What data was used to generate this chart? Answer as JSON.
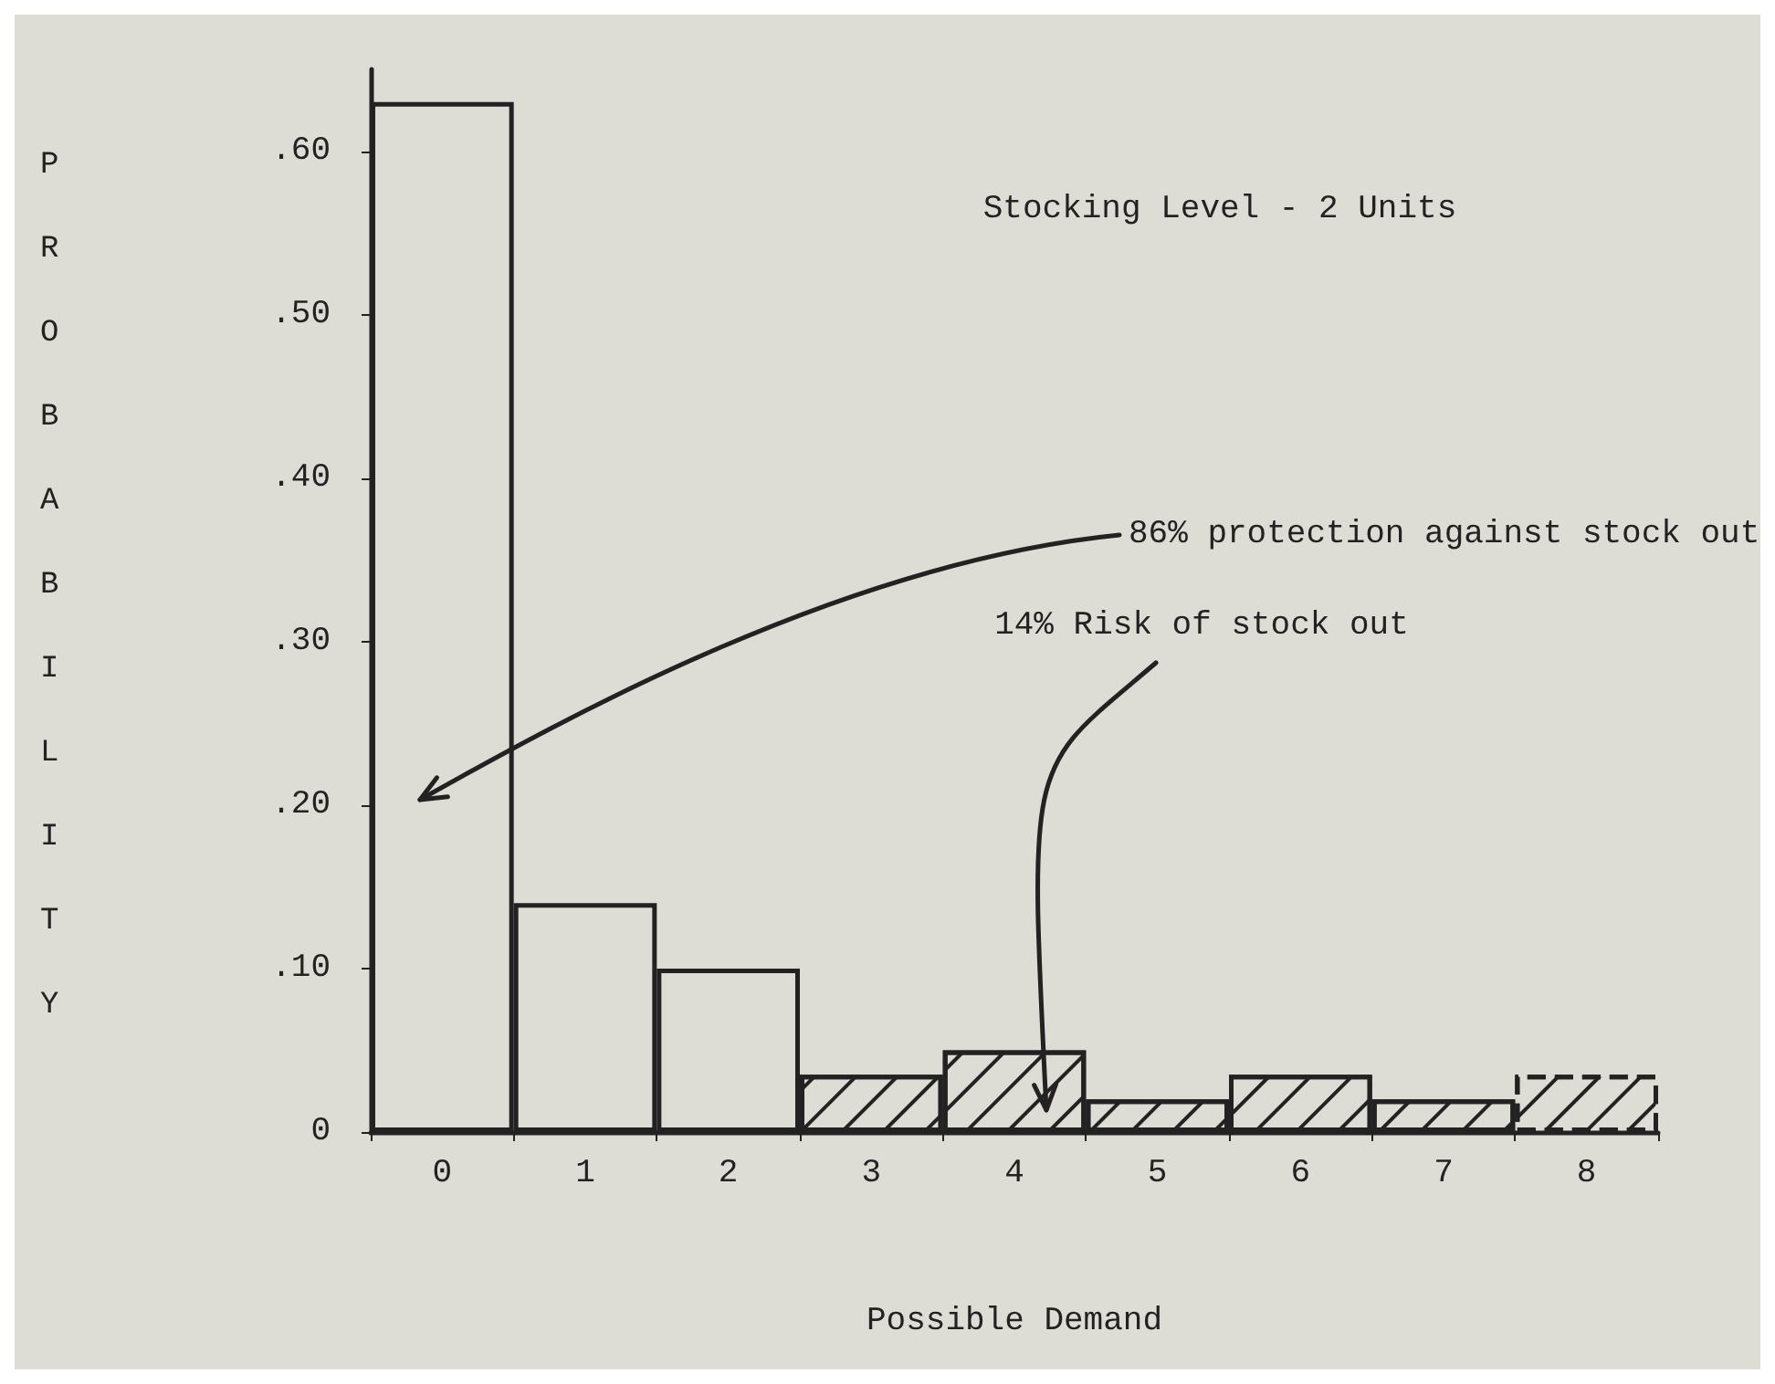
{
  "chart_data": {
    "type": "bar",
    "ylabel": "PROBABILITY",
    "xlabel": "Possible Demand",
    "categories": [
      "0",
      "1",
      "2",
      "3",
      "4",
      "5",
      "6",
      "7",
      "8"
    ],
    "stacked": true,
    "series": [
      {
        "color": "#222222",
        "values": [
          0.63,
          0.14,
          0.1,
          null,
          null,
          null,
          null,
          null,
          null
        ]
      },
      {
        "color": "#222222",
        "values": [
          null,
          null,
          null,
          0.035,
          0.05,
          0.02,
          0.035,
          0.02,
          null
        ]
      },
      {
        "color": "#222222",
        "line_style": "dashed",
        "values": [
          null,
          null,
          null,
          null,
          null,
          null,
          null,
          null,
          0.035
        ]
      }
    ],
    "ylim": [
      0,
      0.65
    ],
    "yticks": [
      0,
      {
        "value": 0.1,
        "label": ".10"
      },
      {
        "value": 0.2,
        "label": ".20"
      },
      {
        "value": 0.3,
        "label": ".30"
      },
      {
        "value": 0.4,
        "label": ".40"
      },
      {
        "value": 0.5,
        "label": ".50"
      },
      {
        "value": 0.6,
        "label": ".60"
      }
    ],
    "annotations": [
      "Stocking Level - 2 Units",
      "86% protection against stock out",
      "14% Risk of stock out"
    ]
  }
}
